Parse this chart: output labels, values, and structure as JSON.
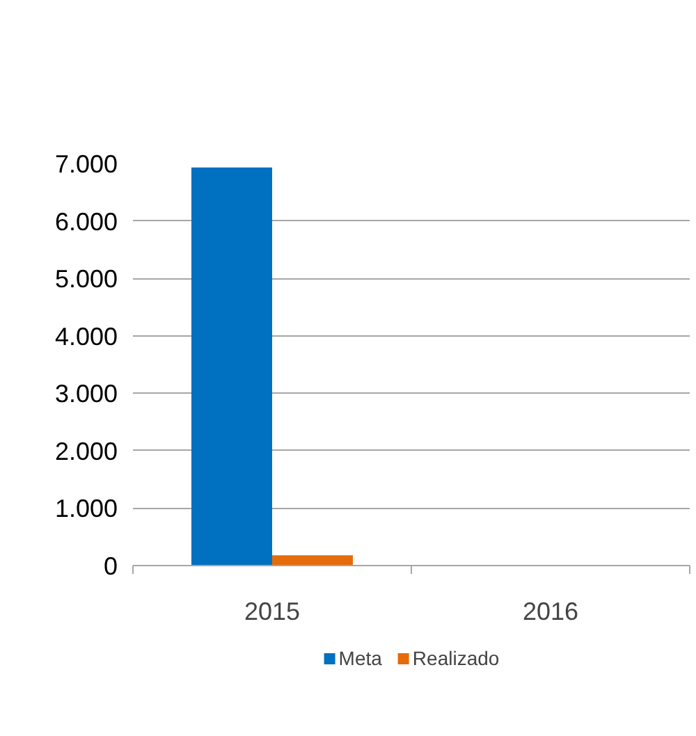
{
  "chart_data": {
    "type": "bar",
    "categories": [
      "2015",
      "2016"
    ],
    "series": [
      {
        "name": "Meta",
        "color": "#0070c0",
        "values": [
          6930,
          null
        ]
      },
      {
        "name": "Realizado",
        "color": "#e46c0a",
        "values": [
          180,
          null
        ]
      }
    ],
    "ylim": [
      0,
      7000
    ],
    "yticks": [
      {
        "value": 0,
        "label": "0"
      },
      {
        "value": 1000,
        "label": "1.000"
      },
      {
        "value": 2000,
        "label": "2.000"
      },
      {
        "value": 3000,
        "label": "3.000"
      },
      {
        "value": 4000,
        "label": "4.000"
      },
      {
        "value": 5000,
        "label": "5.000"
      },
      {
        "value": 6000,
        "label": "6.000"
      },
      {
        "value": 7000,
        "label": "7.000"
      }
    ],
    "grid": "y",
    "legend": "bottom"
  }
}
